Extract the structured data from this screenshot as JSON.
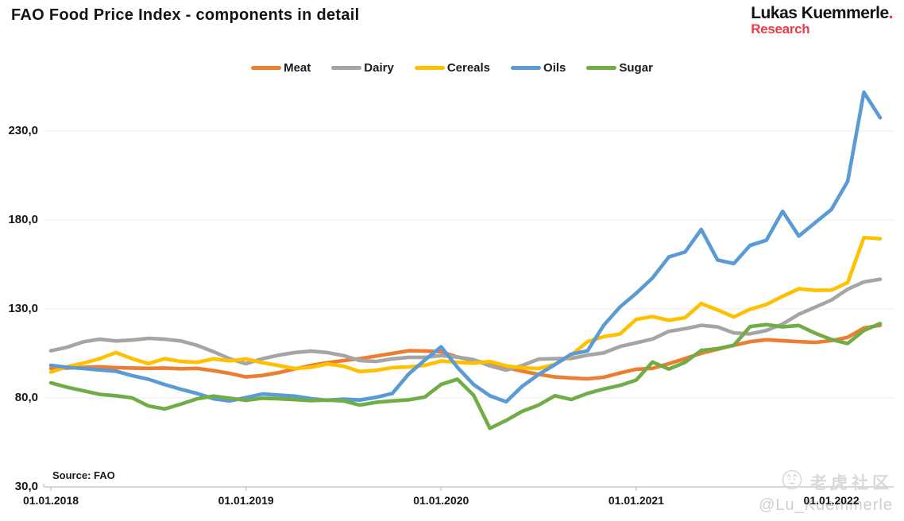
{
  "title": "FAO Food Price Index - components in detail",
  "brand": {
    "line1": "Lukas Kuemmerle",
    "dot": ".",
    "line2": "Research"
  },
  "source": "Source: FAO",
  "watermark": {
    "community": "老虎社区",
    "handle": "@Lu_Kuemmerle"
  },
  "colors": {
    "meat": "#ED7D31",
    "dairy": "#A5A5A5",
    "cereals": "#FFC000",
    "oils": "#5B9BD5",
    "sugar": "#70AD47",
    "grid": "#ececec",
    "axis": "#c8c8c8",
    "brand_red": "#ee3b43"
  },
  "chart_data": {
    "type": "line",
    "title": "FAO Food Price Index - components in detail",
    "xlabel": "",
    "ylabel": "",
    "grid": "horizontal",
    "legend_position": "top",
    "ylim": [
      30,
      255
    ],
    "y_ticks": [
      230,
      180,
      130,
      80,
      30
    ],
    "y_tick_labels": [
      "230,0",
      "180,0",
      "130,0",
      "80,0",
      "30,0"
    ],
    "x_tick_labels": [
      "01.01.2018",
      "01.01.2019",
      "01.01.2020",
      "01.01.2021",
      "01.01.2022"
    ],
    "x": [
      "2018-01",
      "2018-02",
      "2018-03",
      "2018-04",
      "2018-05",
      "2018-06",
      "2018-07",
      "2018-08",
      "2018-09",
      "2018-10",
      "2018-11",
      "2018-12",
      "2019-01",
      "2019-02",
      "2019-03",
      "2019-04",
      "2019-05",
      "2019-06",
      "2019-07",
      "2019-08",
      "2019-09",
      "2019-10",
      "2019-11",
      "2019-12",
      "2020-01",
      "2020-02",
      "2020-03",
      "2020-04",
      "2020-05",
      "2020-06",
      "2020-07",
      "2020-08",
      "2020-09",
      "2020-10",
      "2020-11",
      "2020-12",
      "2021-01",
      "2021-02",
      "2021-03",
      "2021-04",
      "2021-05",
      "2021-06",
      "2021-07",
      "2021-08",
      "2021-09",
      "2021-10",
      "2021-11",
      "2021-12",
      "2022-01",
      "2022-02",
      "2022-03",
      "2022-04"
    ],
    "series": [
      {
        "name": "Meat",
        "color": "#ED7D31",
        "values": [
          96.5,
          96.8,
          97.2,
          97.5,
          97.0,
          96.8,
          96.6,
          96.8,
          96.4,
          96.6,
          95.3,
          93.8,
          91.8,
          92.6,
          94.2,
          96.3,
          98.2,
          99.8,
          101.0,
          102.0,
          103.5,
          105.0,
          106.5,
          106.4,
          106.0,
          103.0,
          101.0,
          99.3,
          97.0,
          95.0,
          93.2,
          91.8,
          91.2,
          90.7,
          91.6,
          94.0,
          96.1,
          96.6,
          99.2,
          102.1,
          105.1,
          107.3,
          109.6,
          111.6,
          112.7,
          112.1,
          111.6,
          111.2,
          112.2,
          114.0,
          119.3,
          120.8
        ]
      },
      {
        "name": "Dairy",
        "color": "#A5A5A5",
        "values": [
          106.5,
          108.5,
          111.5,
          113.0,
          112.0,
          112.5,
          113.5,
          113.0,
          112.0,
          109.5,
          106.0,
          102.0,
          99.2,
          102.0,
          104.0,
          105.5,
          106.3,
          105.5,
          103.8,
          101.0,
          100.5,
          101.9,
          102.8,
          102.8,
          103.8,
          102.9,
          101.5,
          98.0,
          95.6,
          98.2,
          101.8,
          102.0,
          102.2,
          104.0,
          105.3,
          108.9,
          111.0,
          113.1,
          117.4,
          118.9,
          120.8,
          119.9,
          116.5,
          116.0,
          117.9,
          121.5,
          127.0,
          131.0,
          135.0,
          141.1,
          145.2,
          146.7
        ]
      },
      {
        "name": "Cereals",
        "color": "#FFC000",
        "values": [
          94.5,
          97.5,
          99.5,
          102.0,
          105.5,
          102.0,
          99.3,
          102.0,
          100.5,
          100.0,
          101.9,
          100.8,
          101.9,
          99.8,
          98.2,
          96.5,
          97.2,
          99.1,
          97.8,
          94.8,
          95.5,
          97.0,
          97.4,
          98.3,
          100.7,
          100.0,
          99.5,
          100.5,
          98.0,
          96.9,
          96.5,
          98.9,
          104.0,
          111.6,
          114.4,
          115.9,
          124.2,
          125.7,
          123.6,
          125.1,
          133.1,
          129.4,
          125.5,
          129.8,
          132.5,
          137.1,
          141.3,
          140.5,
          140.6,
          144.8,
          170.1,
          169.5
        ]
      },
      {
        "name": "Oils",
        "color": "#5B9BD5",
        "values": [
          98.3,
          97.2,
          96.5,
          95.7,
          95.0,
          92.5,
          90.5,
          87.5,
          84.8,
          82.5,
          79.5,
          78.3,
          80.2,
          82.2,
          81.6,
          81.0,
          79.6,
          78.6,
          79.3,
          78.8,
          80.3,
          82.5,
          93.4,
          101.3,
          108.7,
          97.2,
          87.5,
          81.2,
          77.8,
          86.6,
          93.2,
          98.7,
          104.6,
          106.4,
          120.8,
          131.1,
          138.8,
          147.4,
          159.2,
          162.0,
          174.7,
          157.5,
          155.5,
          165.7,
          168.6,
          184.9,
          171.0,
          178.5,
          185.9,
          201.7,
          251.8,
          237.5
        ]
      },
      {
        "name": "Sugar",
        "color": "#70AD47",
        "values": [
          88.5,
          86.0,
          84.0,
          82.0,
          81.2,
          80.0,
          75.5,
          73.8,
          76.5,
          79.5,
          81.0,
          79.8,
          78.6,
          79.8,
          79.5,
          79.0,
          78.5,
          78.8,
          78.3,
          76.0,
          77.5,
          78.3,
          78.9,
          80.5,
          87.6,
          90.5,
          81.5,
          62.9,
          67.3,
          72.5,
          76.0,
          81.2,
          79.1,
          82.5,
          85.0,
          87.0,
          90.0,
          100.2,
          96.2,
          100.0,
          106.7,
          107.7,
          109.6,
          120.1,
          121.2,
          119.9,
          120.7,
          116.4,
          112.8,
          110.6,
          117.9,
          121.8
        ]
      }
    ]
  }
}
